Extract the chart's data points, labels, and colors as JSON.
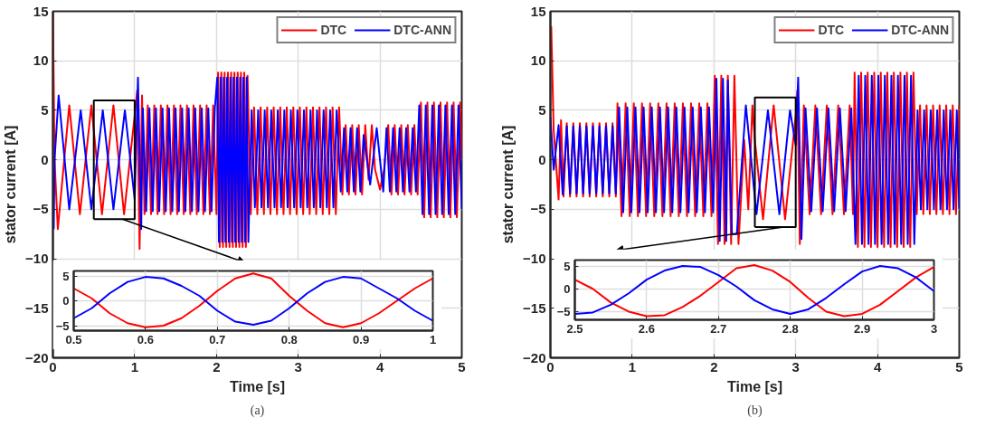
{
  "chart_data": [
    {
      "type": "line",
      "xlabel": "Time [s]",
      "ylabel": "stator current [A]",
      "xlim": [
        0,
        5
      ],
      "ylim": [
        -20,
        15
      ],
      "xticks": [
        0,
        1,
        2,
        3,
        4,
        5
      ],
      "yticks": [
        -20,
        -15,
        -10,
        -5,
        0,
        5,
        10,
        15
      ],
      "grid": true,
      "legend": "top right",
      "annotations": [
        "(a)"
      ],
      "series": [
        {
          "name": "DTC",
          "color": "#ff0000",
          "x": [
            0,
            0.02,
            0.06,
            0.2,
            0.33,
            0.47,
            0.6,
            0.74,
            0.87,
            1.0,
            1.03,
            1.06,
            1.09,
            1.12,
            1.16,
            1.2,
            1.24,
            1.28,
            1.32,
            1.36,
            1.4,
            1.44,
            1.48,
            1.52,
            1.56,
            1.6,
            1.64,
            1.68,
            1.72,
            1.76,
            1.8,
            1.84,
            1.88,
            1.92,
            1.96,
            2.0,
            2.02,
            2.04,
            2.06,
            2.08,
            2.1,
            2.12,
            2.14,
            2.16,
            2.18,
            2.2,
            2.22,
            2.24,
            2.26,
            2.28,
            2.3,
            2.32,
            2.34,
            2.36,
            2.38,
            2.42,
            2.46,
            2.5,
            2.54,
            2.58,
            2.62,
            2.66,
            2.7,
            2.74,
            2.78,
            2.82,
            2.86,
            2.9,
            2.94,
            2.98,
            3.02,
            3.06,
            3.1,
            3.14,
            3.18,
            3.22,
            3.26,
            3.3,
            3.34,
            3.38,
            3.42,
            3.46,
            3.5,
            3.54,
            3.58,
            3.62,
            3.66,
            3.7,
            3.74,
            3.78,
            3.82,
            3.86,
            3.9,
            3.94,
            4.0,
            4.05,
            4.1,
            4.14,
            4.18,
            4.22,
            4.26,
            4.3,
            4.34,
            4.38,
            4.42,
            4.46,
            4.5,
            4.54,
            4.58,
            4.62,
            4.66,
            4.7,
            4.74,
            4.78,
            4.82,
            4.86,
            4.9,
            4.94,
            4.98,
            5.0
          ],
          "values": [
            15,
            0,
            -7,
            5.5,
            -5.5,
            5.5,
            -5.5,
            5.5,
            -5.5,
            4.5,
            7,
            -9,
            6.5,
            -5.5,
            5.5,
            -5.5,
            5.5,
            -5.5,
            5.5,
            -5.5,
            5.5,
            -5.5,
            5.5,
            -5.5,
            5.5,
            -5.5,
            5.5,
            -5.5,
            5.5,
            -5.5,
            5.5,
            -5.5,
            5.5,
            -5.5,
            5.5,
            -5.5,
            8.8,
            -8.8,
            8.8,
            -8.8,
            8.8,
            -8.8,
            8.8,
            -8.8,
            8.8,
            -8.8,
            8.8,
            -8.8,
            8.8,
            -8.8,
            8.8,
            -8.8,
            8.8,
            -8.8,
            8.5,
            -5.5,
            5.3,
            -5.5,
            5.3,
            -5.5,
            5.3,
            -5.5,
            5.3,
            -5.5,
            5.3,
            -5.5,
            5.3,
            -5.5,
            5.3,
            -5.5,
            5.3,
            -5.5,
            5.3,
            -5.5,
            5.3,
            -5.5,
            5.3,
            -5.5,
            5.3,
            -5.5,
            5.3,
            -5.5,
            5.3,
            -3.5,
            3.5,
            -3.5,
            3.5,
            -3.5,
            3.5,
            -3.5,
            3.5,
            -2,
            3.5,
            -1,
            -3,
            -1,
            3.5,
            -3.5,
            3.5,
            -3.5,
            3.5,
            -3.5,
            3.5,
            -3.5,
            3.5,
            -3.5,
            5.8,
            -5.8,
            5.8,
            -5.8,
            5.8,
            -5.8,
            5.8,
            -5.8,
            5.8,
            -5.8,
            5.8,
            -5.8,
            5.8,
            0
          ]
        },
        {
          "name": "DTC-ANN",
          "color": "#0000ff",
          "x": [
            0.01,
            0.02,
            0.07,
            0.2,
            0.34,
            0.47,
            0.61,
            0.74,
            0.88,
            1.0,
            1.04,
            1.08,
            1.1,
            1.14,
            1.18,
            1.22,
            1.26,
            1.3,
            1.34,
            1.38,
            1.42,
            1.46,
            1.5,
            1.54,
            1.58,
            1.62,
            1.66,
            1.7,
            1.74,
            1.78,
            1.82,
            1.86,
            1.9,
            1.94,
            1.98,
            2.01,
            2.03,
            2.05,
            2.07,
            2.09,
            2.11,
            2.13,
            2.15,
            2.17,
            2.19,
            2.21,
            2.23,
            2.25,
            2.27,
            2.29,
            2.31,
            2.33,
            2.35,
            2.37,
            2.39,
            2.43,
            2.47,
            2.51,
            2.55,
            2.59,
            2.63,
            2.67,
            2.71,
            2.75,
            2.79,
            2.83,
            2.87,
            2.91,
            2.95,
            2.99,
            3.03,
            3.07,
            3.11,
            3.15,
            3.19,
            3.23,
            3.27,
            3.31,
            3.35,
            3.39,
            3.43,
            3.47,
            3.52,
            3.56,
            3.6,
            3.64,
            3.68,
            3.72,
            3.76,
            3.8,
            3.88,
            3.96,
            4.04,
            4.08,
            4.12,
            4.16,
            4.2,
            4.24,
            4.28,
            4.32,
            4.36,
            4.4,
            4.44,
            4.48,
            4.52,
            4.56,
            4.6,
            4.64,
            4.68,
            4.72,
            4.76,
            4.8,
            4.84,
            4.88,
            4.92,
            4.96,
            5.0
          ],
          "values": [
            -7,
            0,
            6.5,
            -5,
            5,
            -5,
            5,
            -5,
            5,
            -4,
            8.3,
            -7,
            5.2,
            -5.2,
            5.2,
            -5.2,
            5.2,
            -5.2,
            5.2,
            -5.2,
            5.2,
            -5.2,
            5.2,
            -5.2,
            5.2,
            -5.2,
            5.2,
            -5.2,
            5.2,
            -5.2,
            5.2,
            -5.2,
            5.2,
            -5.2,
            5.2,
            8.3,
            -8.3,
            8.3,
            -8.3,
            8.3,
            -8.3,
            8.3,
            -8.3,
            8.3,
            -8.3,
            8.3,
            -8.3,
            8.3,
            -8.3,
            8.3,
            -8.3,
            8.3,
            -8.3,
            8.3,
            -8.3,
            5,
            -4.8,
            5,
            -4.8,
            5,
            -4.8,
            5,
            -4.8,
            5,
            -4.8,
            5,
            -4.8,
            5,
            -4.8,
            5,
            -4.8,
            5,
            -4.8,
            5,
            -4.8,
            5,
            -4.8,
            5,
            -4.8,
            5,
            -4.8,
            5,
            -3.2,
            3.2,
            -3.2,
            3.2,
            -3.2,
            3.2,
            -3.2,
            2.5,
            -2.5,
            3.2,
            -3.2,
            3.2,
            -3.2,
            3.2,
            -3.2,
            3.2,
            -3.2,
            3.2,
            -3.2,
            3.2,
            -3.2,
            5.5,
            -5.5,
            5.5,
            -5.5,
            5.5,
            -5.5,
            5.5,
            -5.5,
            5.5,
            -5.5,
            5.5,
            -5.5,
            5.5,
            -5
          ]
        }
      ]
    },
    {
      "type": "line",
      "xlim": [
        0.5,
        1
      ],
      "ylim": [
        -6,
        6
      ],
      "xticks": [
        0.5,
        0.6,
        0.7,
        0.8,
        0.9,
        1
      ],
      "yticks": [
        -5,
        0,
        5
      ],
      "grid": true,
      "series": [
        {
          "color": "#ff0000",
          "x": [
            0.5,
            0.525,
            0.55,
            0.575,
            0.6,
            0.625,
            0.65,
            0.675,
            0.7,
            0.725,
            0.75,
            0.775,
            0.8,
            0.825,
            0.85,
            0.875,
            0.9,
            0.925,
            0.95,
            0.975,
            1.0
          ],
          "values": [
            2.5,
            0.5,
            -2.5,
            -4.5,
            -5.3,
            -5,
            -3.5,
            -1,
            2,
            4.5,
            5.5,
            4.5,
            1,
            -2,
            -4.5,
            -5.3,
            -4.5,
            -2.5,
            0,
            2.5,
            4.5
          ]
        },
        {
          "color": "#0000ff",
          "x": [
            0.5,
            0.525,
            0.55,
            0.575,
            0.6,
            0.625,
            0.65,
            0.675,
            0.7,
            0.725,
            0.75,
            0.775,
            0.8,
            0.825,
            0.85,
            0.875,
            0.9,
            0.925,
            0.95,
            0.975,
            1.0
          ],
          "values": [
            -3.5,
            -1.5,
            1.5,
            3.8,
            4.8,
            4.5,
            3,
            1,
            -2,
            -4.2,
            -4.8,
            -4,
            -1.5,
            1.5,
            3.8,
            4.8,
            4.5,
            2.5,
            0.5,
            -2,
            -4
          ]
        }
      ]
    },
    {
      "type": "line",
      "xlabel": "Time [s]",
      "ylabel": "stator current [A]",
      "xlim": [
        0,
        5
      ],
      "ylim": [
        -20,
        15
      ],
      "xticks": [
        0,
        1,
        2,
        3,
        4,
        5
      ],
      "yticks": [
        -20,
        -15,
        -10,
        -5,
        0,
        5,
        10,
        15
      ],
      "grid": true,
      "legend": "top right",
      "annotations": [
        "(b)"
      ],
      "series": [
        {
          "name": "DTC",
          "color": "#ff0000",
          "x": [
            0.01,
            0.04,
            0.1,
            0.13,
            0.16,
            0.2,
            0.24,
            0.28,
            0.32,
            0.36,
            0.4,
            0.44,
            0.48,
            0.52,
            0.56,
            0.6,
            0.64,
            0.68,
            0.72,
            0.76,
            0.8,
            0.82,
            0.87,
            0.92,
            0.97,
            1.02,
            1.07,
            1.12,
            1.17,
            1.22,
            1.27,
            1.32,
            1.37,
            1.42,
            1.47,
            1.52,
            1.57,
            1.62,
            1.67,
            1.72,
            1.77,
            1.82,
            1.87,
            1.92,
            1.97,
            2.01,
            2.05,
            2.09,
            2.13,
            2.17,
            2.21,
            2.25,
            2.3,
            2.37,
            2.42,
            2.47,
            2.5,
            2.6,
            2.73,
            2.87,
            3.0,
            3.02,
            3.05,
            3.1,
            3.17,
            3.24,
            3.31,
            3.38,
            3.45,
            3.52,
            3.59,
            3.66,
            3.7,
            3.72,
            3.76,
            3.8,
            3.84,
            3.88,
            3.92,
            3.96,
            4.0,
            4.04,
            4.08,
            4.12,
            4.16,
            4.2,
            4.24,
            4.28,
            4.32,
            4.36,
            4.4,
            4.44,
            4.48,
            4.52,
            4.56,
            4.6,
            4.64,
            4.68,
            4.72,
            4.76,
            4.8,
            4.84,
            4.88,
            4.92,
            4.96,
            5.0
          ],
          "values": [
            13.5,
            3,
            -4,
            4,
            -3.7,
            3.7,
            -3.7,
            3.7,
            -3.7,
            3.7,
            -3.7,
            3.7,
            -3.7,
            3.7,
            -3.7,
            3.7,
            -3.7,
            3.7,
            -3.7,
            3.7,
            -3.7,
            5.7,
            -5.7,
            5.7,
            -5.7,
            5.7,
            -5.7,
            5.7,
            -5.7,
            5.7,
            -5.7,
            5.7,
            -5.7,
            5.7,
            -5.7,
            5.7,
            -5.7,
            5.7,
            -5.7,
            5.7,
            -5.7,
            5.7,
            -5.7,
            5.7,
            -5.7,
            8.5,
            -8.5,
            8.5,
            -8.5,
            8.5,
            -8.5,
            8.5,
            -8.5,
            2,
            -5,
            5.5,
            2,
            -6,
            5.5,
            -6,
            4.5,
            7,
            -8.5,
            5.5,
            -5.5,
            5.5,
            -5.5,
            5.5,
            -5.5,
            5.5,
            -5.5,
            5.5,
            -5.5,
            8.8,
            -8.8,
            8.8,
            -8.8,
            8.8,
            -8.8,
            8.8,
            -8.8,
            8.8,
            -8.8,
            8.8,
            -8.8,
            8.8,
            -8.8,
            8.8,
            -8.8,
            8.8,
            -8.8,
            8.8,
            -5.5,
            5.5,
            -5.5,
            5.5,
            -5.5,
            5.5,
            -5.5,
            5.5,
            -5.5,
            5.5,
            -5.5,
            5.5,
            -5.5,
            5.5
          ]
        },
        {
          "name": "DTC-ANN",
          "color": "#0000ff",
          "x": [
            0,
            0.04,
            0.1,
            0.15,
            0.2,
            0.24,
            0.28,
            0.32,
            0.36,
            0.4,
            0.44,
            0.48,
            0.52,
            0.56,
            0.6,
            0.64,
            0.68,
            0.72,
            0.76,
            0.8,
            0.84,
            0.89,
            0.94,
            0.99,
            1.04,
            1.09,
            1.14,
            1.19,
            1.24,
            1.29,
            1.34,
            1.39,
            1.44,
            1.49,
            1.54,
            1.59,
            1.64,
            1.69,
            1.74,
            1.79,
            1.84,
            1.89,
            1.94,
            1.99,
            2.03,
            2.07,
            2.11,
            2.15,
            2.17,
            2.22,
            2.28,
            2.39,
            2.52,
            2.66,
            2.8,
            2.93,
            3.0,
            3.03,
            3.07,
            3.12,
            3.19,
            3.26,
            3.33,
            3.4,
            3.47,
            3.54,
            3.61,
            3.68,
            3.73,
            3.77,
            3.81,
            3.85,
            3.89,
            3.93,
            3.97,
            4.01,
            4.05,
            4.09,
            4.13,
            4.17,
            4.21,
            4.25,
            4.29,
            4.33,
            4.37,
            4.41,
            4.45,
            4.49,
            4.53,
            4.57,
            4.61,
            4.65,
            4.69,
            4.73,
            4.77,
            4.81,
            4.85,
            4.89,
            4.93,
            4.97,
            5.0
          ],
          "values": [
            4.3,
            -1,
            3.5,
            -3.5,
            3.4,
            -3.4,
            3.4,
            -3.4,
            3.4,
            -3.4,
            3.4,
            -3.4,
            3.4,
            -3.4,
            3.4,
            -3.4,
            3.4,
            -3.4,
            3.4,
            -3.4,
            5.3,
            -5.3,
            5.3,
            -5.3,
            5.3,
            -5.3,
            5.3,
            -5.3,
            5.3,
            -5.3,
            5.3,
            -5.3,
            5.3,
            -5.3,
            5.3,
            -5.3,
            5.3,
            -5.3,
            5.3,
            -5.3,
            5.3,
            -5.3,
            5.3,
            -5.3,
            8.2,
            -8.2,
            8.2,
            -8.2,
            8,
            -7.5,
            -7.5,
            5.5,
            -5.5,
            5,
            -5.5,
            5,
            1.5,
            8.3,
            -8,
            5.2,
            -5.2,
            5.2,
            -5.2,
            5.2,
            -5.2,
            5.2,
            -5.2,
            5.2,
            -8.5,
            8.5,
            -8.5,
            8.5,
            -8.5,
            8.5,
            -8.5,
            8.5,
            -8.5,
            8.5,
            -8.5,
            8.5,
            -8.5,
            8.5,
            -8.5,
            8.5,
            -8.5,
            8.5,
            -8.5,
            5,
            -5,
            5,
            -5,
            5,
            -5,
            5,
            -5,
            5,
            -5,
            5,
            -5,
            5,
            -5
          ]
        }
      ]
    },
    {
      "type": "line",
      "xlim": [
        2.5,
        3
      ],
      "ylim": [
        -6.8,
        6.3
      ],
      "xticks": [
        2.5,
        2.6,
        2.7,
        2.8,
        2.9,
        3
      ],
      "yticks": [
        -5,
        0,
        5
      ],
      "grid": true,
      "series": [
        {
          "color": "#ff0000",
          "x": [
            2.5,
            2.525,
            2.55,
            2.575,
            2.6,
            2.625,
            2.65,
            2.675,
            2.7,
            2.725,
            2.75,
            2.775,
            2.8,
            2.825,
            2.85,
            2.875,
            2.9,
            2.925,
            2.95,
            2.975,
            3.0
          ],
          "values": [
            2,
            0,
            -3,
            -5,
            -6,
            -5.8,
            -4,
            -1.5,
            1.5,
            4.5,
            5.2,
            4,
            1.5,
            -2,
            -5,
            -6,
            -5.5,
            -3.5,
            -0.5,
            2.5,
            4.8
          ]
        },
        {
          "color": "#0000ff",
          "x": [
            2.5,
            2.525,
            2.55,
            2.575,
            2.6,
            2.625,
            2.65,
            2.675,
            2.7,
            2.725,
            2.75,
            2.775,
            2.8,
            2.825,
            2.85,
            2.875,
            2.9,
            2.925,
            2.95,
            2.975,
            3.0
          ],
          "values": [
            -5.5,
            -5.2,
            -3.5,
            -1,
            2,
            4,
            5,
            4.8,
            3,
            0.5,
            -2.5,
            -4.5,
            -5.5,
            -4.5,
            -2,
            1,
            3.8,
            5,
            4.5,
            2.5,
            -0.5
          ]
        }
      ]
    }
  ]
}
